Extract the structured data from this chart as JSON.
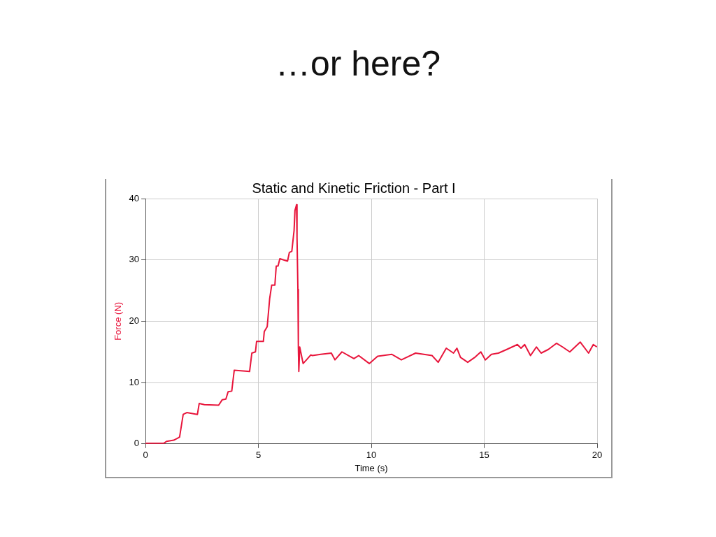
{
  "chart_data": {
    "type": "line",
    "title": "…or here?",
    "subtitle": "Static and Kinetic Friction - Part I",
    "xlabel": "Time (s)",
    "ylabel": "Force (N)",
    "xlim": [
      0,
      20
    ],
    "ylim": [
      0,
      40
    ],
    "xticks": [
      0,
      5,
      10,
      15,
      20
    ],
    "yticks": [
      0,
      10,
      20,
      30,
      40
    ],
    "grid": true,
    "legend": false,
    "marker": "none",
    "line_style": "solid",
    "series": [
      {
        "color": "#e8163c",
        "x": [
          0,
          0.82,
          0.93,
          1.25,
          1.51,
          1.67,
          1.83,
          2.3,
          2.38,
          2.61,
          3.24,
          3.4,
          3.56,
          3.66,
          3.82,
          3.93,
          4.61,
          4.71,
          4.87,
          4.92,
          5.22,
          5.26,
          5.39,
          5.5,
          5.59,
          5.73,
          5.79,
          5.87,
          5.95,
          6.29,
          6.37,
          6.48,
          6.58,
          6.62,
          6.69,
          6.71,
          6.75,
          6.77,
          6.79,
          6.83,
          6.98,
          7.13,
          7.32,
          7.39,
          7.76,
          8.23,
          8.39,
          8.7,
          9.23,
          9.44,
          9.91,
          10.28,
          10.91,
          11.33,
          11.96,
          12.69,
          12.96,
          13.32,
          13.64,
          13.79,
          13.95,
          14.27,
          14.58,
          14.85,
          15.05,
          15.32,
          15.63,
          16.0,
          16.47,
          16.63,
          16.79,
          17.05,
          17.31,
          17.52,
          17.84,
          18.2,
          18.47,
          18.79,
          19.25,
          19.62,
          19.83,
          19.99
        ],
        "values": [
          0.1,
          0.1,
          0.4,
          0.6,
          1.1,
          4.8,
          5.1,
          4.8,
          6.6,
          6.4,
          6.3,
          7.2,
          7.3,
          8.5,
          8.6,
          12.0,
          11.8,
          14.8,
          15.0,
          16.7,
          16.7,
          18.3,
          19.1,
          23.7,
          25.9,
          25.9,
          29.0,
          29.0,
          30.2,
          29.8,
          31.2,
          31.4,
          34.8,
          38.1,
          39.0,
          33.7,
          25.2,
          15.6,
          11.8,
          15.8,
          13.1,
          13.7,
          14.5,
          14.4,
          14.6,
          14.8,
          13.7,
          15.0,
          13.9,
          14.4,
          13.1,
          14.3,
          14.6,
          13.7,
          14.8,
          14.4,
          13.3,
          15.6,
          14.8,
          15.6,
          14.1,
          13.3,
          14.1,
          15.0,
          13.7,
          14.6,
          14.8,
          15.4,
          16.2,
          15.6,
          16.2,
          14.4,
          15.8,
          14.8,
          15.4,
          16.4,
          15.8,
          15.0,
          16.6,
          14.8,
          16.2,
          15.8
        ]
      }
    ]
  }
}
